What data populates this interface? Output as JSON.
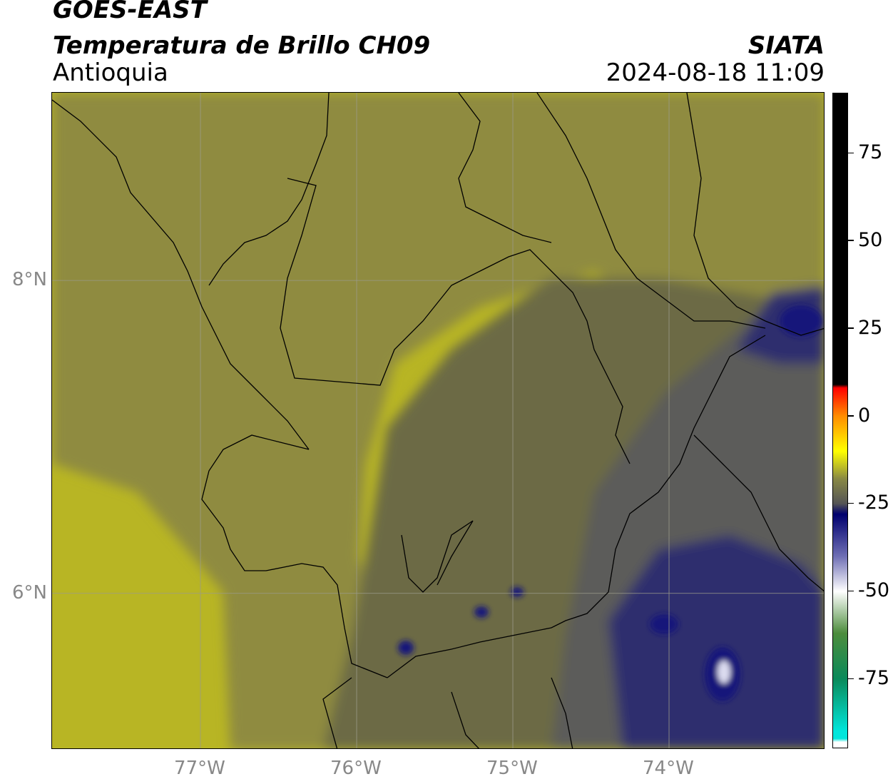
{
  "header": {
    "satellite": "GOES-EAST",
    "product": "Temperatura de Brillo CH09",
    "region": "Antioquia",
    "agency": "SIATA",
    "datetime": "2024-08-18 11:09"
  },
  "map": {
    "lon_range": [
      -77.95,
      -73.0
    ],
    "lat_range": [
      5.0,
      9.2
    ],
    "lon_ticks": [
      {
        "value": -77,
        "label": "77°W"
      },
      {
        "value": -76,
        "label": "76°W"
      },
      {
        "value": -75,
        "label": "75°W"
      },
      {
        "value": -74,
        "label": "74°W"
      }
    ],
    "lat_ticks": [
      {
        "value": 8,
        "label": "8°N"
      },
      {
        "value": 6,
        "label": "6°N"
      }
    ],
    "gridlines": true,
    "colors": {
      "warm_yellow": "#b8b524",
      "olive": "#8f8b3f",
      "dark_olive": "#6c6b45",
      "grey": "#5c5c5a",
      "navy": "#2d2f6e",
      "deep_blue": "#15177a",
      "white_core": "#dcdcf0"
    }
  },
  "colorbar": {
    "range": [
      -95,
      92
    ],
    "ticks": [
      {
        "value": 75,
        "label": "75"
      },
      {
        "value": 50,
        "label": "50"
      },
      {
        "value": 25,
        "label": "25"
      },
      {
        "value": 0,
        "label": "0"
      },
      {
        "value": -25,
        "label": "-25"
      },
      {
        "value": -50,
        "label": "-50"
      },
      {
        "value": -75,
        "label": "-75"
      }
    ],
    "stops": [
      {
        "value": 92,
        "color": "#000000"
      },
      {
        "value": 9,
        "color": "#000000"
      },
      {
        "value": 8,
        "color": "#ff0000"
      },
      {
        "value": 0,
        "color": "#ff8c00"
      },
      {
        "value": -10,
        "color": "#ffff00"
      },
      {
        "value": -18,
        "color": "#888844"
      },
      {
        "value": -25,
        "color": "#555555"
      },
      {
        "value": -28,
        "color": "#00006e"
      },
      {
        "value": -40,
        "color": "#6e6eb4"
      },
      {
        "value": -50,
        "color": "#ffffff"
      },
      {
        "value": -62,
        "color": "#4c8c3c"
      },
      {
        "value": -75,
        "color": "#0a8a5a"
      },
      {
        "value": -90,
        "color": "#00e6dc"
      },
      {
        "value": -92,
        "color": "#00e6dc"
      },
      {
        "value": -93,
        "color": "#ffffff"
      },
      {
        "value": -95,
        "color": "#ffffff"
      }
    ]
  }
}
